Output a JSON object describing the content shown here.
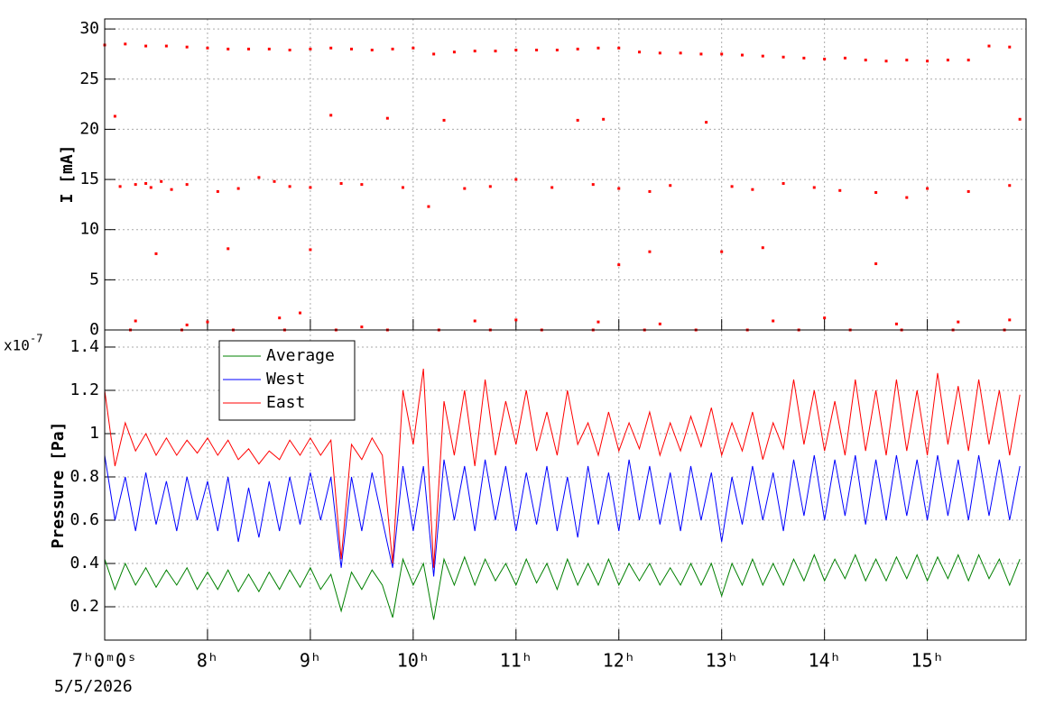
{
  "chart_data": [
    {
      "type": "scatter",
      "ylabel": "I [mA]",
      "color": "#ff0000",
      "grid": true,
      "xlim": [
        7,
        15.96
      ],
      "ylim": [
        0,
        31
      ],
      "xticks": [
        7,
        8,
        9,
        10,
        11,
        12,
        13,
        14,
        15
      ],
      "yticks": [
        0,
        5,
        10,
        15,
        20,
        25,
        30
      ],
      "x": [
        7.0,
        7.2,
        7.4,
        7.6,
        7.8,
        8.0,
        8.2,
        8.4,
        8.6,
        8.8,
        9.0,
        9.2,
        9.4,
        9.6,
        9.8,
        10.0,
        10.2,
        10.4,
        10.6,
        10.8,
        11.0,
        11.2,
        11.4,
        11.6,
        11.8,
        12.0,
        12.2,
        12.4,
        12.6,
        12.8,
        13.0,
        13.2,
        13.4,
        13.6,
        13.8,
        14.0,
        14.2,
        14.4,
        14.6,
        14.8,
        15.0,
        15.2,
        15.4,
        15.6,
        15.8,
        7.1,
        7.15,
        7.3,
        7.4,
        7.45,
        7.55,
        7.65,
        7.8,
        8.1,
        8.3,
        8.5,
        8.65,
        8.8,
        9.0,
        9.2,
        9.3,
        9.5,
        9.75,
        9.9,
        10.15,
        10.3,
        10.5,
        10.75,
        11.0,
        11.35,
        11.6,
        11.75,
        11.85,
        12.0,
        12.3,
        12.5,
        12.85,
        13.1,
        13.3,
        13.6,
        13.9,
        14.15,
        14.5,
        14.8,
        15.0,
        15.4,
        15.8,
        15.9,
        7.5,
        8.2,
        9.0,
        12.3,
        13.0,
        13.4,
        14.5,
        12.0,
        7.3,
        7.8,
        8.0,
        8.7,
        8.9,
        9.5,
        10.6,
        11.0,
        11.8,
        12.4,
        13.5,
        14.0,
        14.7,
        15.3,
        15.8,
        7.25,
        7.75,
        8.25,
        8.75,
        9.25,
        9.75,
        10.25,
        10.75,
        11.25,
        11.75,
        12.25,
        12.75,
        13.25,
        13.75,
        14.25,
        14.75,
        15.25,
        15.75
      ],
      "values": [
        28.4,
        28.5,
        28.3,
        28.3,
        28.2,
        28.1,
        28.0,
        28.0,
        28.0,
        27.9,
        28.0,
        28.1,
        28.0,
        27.9,
        28.0,
        28.1,
        27.5,
        27.7,
        27.8,
        27.8,
        27.9,
        27.9,
        27.9,
        28.0,
        28.1,
        28.1,
        27.7,
        27.6,
        27.6,
        27.5,
        27.5,
        27.4,
        27.3,
        27.2,
        27.1,
        27.0,
        27.1,
        26.9,
        26.8,
        26.9,
        26.8,
        26.9,
        26.9,
        28.3,
        28.2,
        21.3,
        14.3,
        14.5,
        14.6,
        14.2,
        14.8,
        14.0,
        14.5,
        13.8,
        14.1,
        15.2,
        14.8,
        14.3,
        14.2,
        21.4,
        14.6,
        14.5,
        21.1,
        14.2,
        12.3,
        20.9,
        14.1,
        14.3,
        15.0,
        14.2,
        20.9,
        14.5,
        21.0,
        14.1,
        13.8,
        14.4,
        20.7,
        14.3,
        14.0,
        14.6,
        14.2,
        13.9,
        13.7,
        13.2,
        14.1,
        13.8,
        14.4,
        21.0,
        7.6,
        8.1,
        8.0,
        7.8,
        7.8,
        8.2,
        6.6,
        6.5,
        0.9,
        0.5,
        0.8,
        1.2,
        1.7,
        0.3,
        0.9,
        1.0,
        0.8,
        0.6,
        0.9,
        1.2,
        0.6,
        0.8,
        1.0,
        0,
        0,
        0,
        0,
        0,
        0,
        0,
        0,
        0,
        0,
        0,
        0,
        0,
        0,
        0,
        0,
        0,
        0
      ]
    },
    {
      "type": "line",
      "ylabel": "Pressure [Pa]",
      "multiplier": "x10",
      "exponent": "-7",
      "date": "5/5/2026",
      "grid": true,
      "legend": "upper left",
      "xlim": [
        7,
        15.96
      ],
      "ylim": [
        0.046,
        1.479
      ],
      "xticks": [
        {
          "value": 7,
          "label": "7ʰ0ᵐ0ˢ"
        },
        {
          "value": 8,
          "label": "8ʰ"
        },
        {
          "value": 9,
          "label": "9ʰ"
        },
        {
          "value": 10,
          "label": "10ʰ"
        },
        {
          "value": 11,
          "label": "11ʰ"
        },
        {
          "value": 12,
          "label": "12ʰ"
        },
        {
          "value": 13,
          "label": "13ʰ"
        },
        {
          "value": 14,
          "label": "14ʰ"
        },
        {
          "value": 15,
          "label": "15ʰ"
        }
      ],
      "yticks": [
        0.2,
        0.4,
        0.6,
        0.8,
        1,
        1.2,
        1.4
      ],
      "x": [
        7.0,
        7.1,
        7.2,
        7.3,
        7.4,
        7.5,
        7.6,
        7.7,
        7.8,
        7.9,
        8.0,
        8.1,
        8.2,
        8.3,
        8.4,
        8.5,
        8.6,
        8.7,
        8.8,
        8.9,
        9.0,
        9.1,
        9.2,
        9.3,
        9.4,
        9.5,
        9.6,
        9.7,
        9.8,
        9.9,
        10.0,
        10.1,
        10.2,
        10.3,
        10.4,
        10.5,
        10.6,
        10.7,
        10.8,
        10.9,
        11.0,
        11.1,
        11.2,
        11.3,
        11.4,
        11.5,
        11.6,
        11.7,
        11.8,
        11.9,
        12.0,
        12.1,
        12.2,
        12.3,
        12.4,
        12.5,
        12.6,
        12.7,
        12.8,
        12.9,
        13.0,
        13.1,
        13.2,
        13.3,
        13.4,
        13.5,
        13.6,
        13.7,
        13.8,
        13.9,
        14.0,
        14.1,
        14.2,
        14.3,
        14.4,
        14.5,
        14.6,
        14.7,
        14.8,
        14.9,
        15.0,
        15.1,
        15.2,
        15.3,
        15.4,
        15.5,
        15.6,
        15.7,
        15.8,
        15.9
      ],
      "series": [
        {
          "name": "Average",
          "color": "#008000",
          "values": [
            0.42,
            0.28,
            0.4,
            0.3,
            0.38,
            0.29,
            0.37,
            0.3,
            0.38,
            0.28,
            0.36,
            0.28,
            0.37,
            0.27,
            0.35,
            0.27,
            0.36,
            0.28,
            0.37,
            0.29,
            0.38,
            0.28,
            0.35,
            0.18,
            0.36,
            0.28,
            0.37,
            0.3,
            0.15,
            0.42,
            0.3,
            0.4,
            0.14,
            0.42,
            0.3,
            0.43,
            0.3,
            0.42,
            0.32,
            0.4,
            0.3,
            0.42,
            0.31,
            0.4,
            0.28,
            0.42,
            0.3,
            0.4,
            0.3,
            0.42,
            0.3,
            0.4,
            0.32,
            0.4,
            0.3,
            0.38,
            0.3,
            0.4,
            0.3,
            0.4,
            0.25,
            0.4,
            0.3,
            0.42,
            0.3,
            0.4,
            0.3,
            0.42,
            0.32,
            0.44,
            0.32,
            0.42,
            0.33,
            0.44,
            0.32,
            0.42,
            0.32,
            0.43,
            0.33,
            0.44,
            0.32,
            0.43,
            0.33,
            0.44,
            0.32,
            0.44,
            0.33,
            0.42,
            0.3,
            0.42
          ]
        },
        {
          "name": "West",
          "color": "#0000ff",
          "values": [
            0.9,
            0.6,
            0.8,
            0.55,
            0.82,
            0.58,
            0.78,
            0.55,
            0.8,
            0.6,
            0.78,
            0.55,
            0.8,
            0.5,
            0.75,
            0.52,
            0.78,
            0.55,
            0.8,
            0.58,
            0.82,
            0.6,
            0.8,
            0.38,
            0.8,
            0.55,
            0.82,
            0.6,
            0.38,
            0.85,
            0.55,
            0.85,
            0.34,
            0.88,
            0.6,
            0.85,
            0.55,
            0.88,
            0.6,
            0.85,
            0.55,
            0.82,
            0.58,
            0.85,
            0.55,
            0.8,
            0.52,
            0.85,
            0.58,
            0.82,
            0.55,
            0.88,
            0.6,
            0.85,
            0.58,
            0.82,
            0.55,
            0.85,
            0.6,
            0.82,
            0.5,
            0.8,
            0.58,
            0.85,
            0.6,
            0.82,
            0.55,
            0.88,
            0.62,
            0.9,
            0.6,
            0.88,
            0.62,
            0.9,
            0.58,
            0.88,
            0.6,
            0.9,
            0.62,
            0.88,
            0.6,
            0.9,
            0.62,
            0.88,
            0.6,
            0.9,
            0.62,
            0.88,
            0.6,
            0.85
          ]
        },
        {
          "name": "East",
          "color": "#ff0000",
          "values": [
            1.2,
            0.85,
            1.05,
            0.92,
            1.0,
            0.9,
            0.98,
            0.9,
            0.97,
            0.91,
            0.98,
            0.9,
            0.97,
            0.88,
            0.93,
            0.86,
            0.92,
            0.88,
            0.97,
            0.9,
            0.98,
            0.9,
            0.97,
            0.42,
            0.95,
            0.88,
            0.98,
            0.9,
            0.4,
            1.2,
            0.95,
            1.3,
            0.38,
            1.15,
            0.9,
            1.2,
            0.85,
            1.25,
            0.9,
            1.15,
            0.95,
            1.2,
            0.92,
            1.1,
            0.9,
            1.2,
            0.95,
            1.05,
            0.9,
            1.1,
            0.92,
            1.05,
            0.93,
            1.1,
            0.9,
            1.05,
            0.92,
            1.08,
            0.94,
            1.12,
            0.9,
            1.05,
            0.92,
            1.1,
            0.88,
            1.05,
            0.93,
            1.25,
            0.95,
            1.2,
            0.92,
            1.15,
            0.9,
            1.25,
            0.92,
            1.2,
            0.9,
            1.25,
            0.92,
            1.2,
            0.9,
            1.28,
            0.95,
            1.22,
            0.92,
            1.25,
            0.95,
            1.2,
            0.9,
            1.18
          ]
        }
      ]
    }
  ]
}
